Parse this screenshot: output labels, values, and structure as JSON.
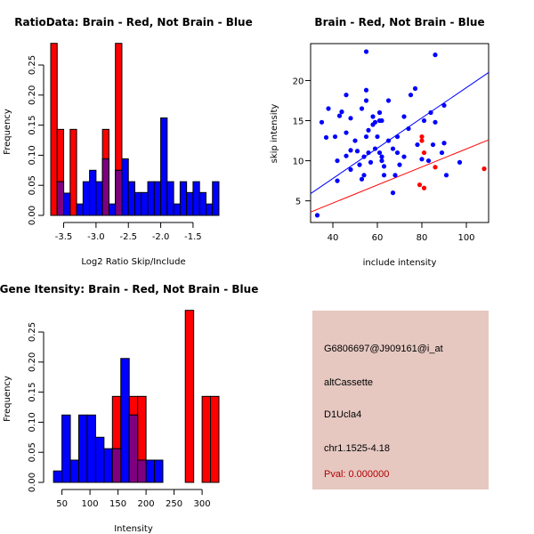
{
  "colors": {
    "red": "#ff0000",
    "blue": "#0000ff",
    "overlap": "#7f007f",
    "info_bg": "#e6c8c1",
    "pval_text": "#b40000",
    "axis": "#000000"
  },
  "chart_data": [
    {
      "id": "ratio",
      "type": "bar",
      "subtype": "overlaid-histogram",
      "title": "RatioData: Brain - Red, Not Brain - Blue",
      "xlabel": "Log2 Ratio Skip/Include",
      "ylabel": "Frequency",
      "xlim": [
        -3.7,
        -1.1
      ],
      "ylim": [
        0,
        0.29
      ],
      "xticks": [
        -3.5,
        -3.0,
        -2.5,
        -2.0,
        -1.5
      ],
      "xtick_labels": [
        "-3.5",
        "-3.0",
        "-2.5",
        "-2.0",
        "-1.5"
      ],
      "yticks": [
        0,
        0.05,
        0.1,
        0.15,
        0.2,
        0.25
      ],
      "ytick_labels": [
        "0.00",
        "0.05",
        "0.10",
        "0.15",
        "0.20",
        "0.25"
      ],
      "series": [
        {
          "name": "Brain",
          "color": "red",
          "bins": [
            [
              -3.7,
              -3.6,
              0.286
            ],
            [
              -3.6,
              -3.5,
              0.143
            ],
            [
              -3.4,
              -3.3,
              0.143
            ],
            [
              -2.9,
              -2.8,
              0.143
            ],
            [
              -2.7,
              -2.6,
              0.286
            ]
          ]
        },
        {
          "name": "Not Brain",
          "color": "blue",
          "bins": [
            [
              -3.6,
              -3.5,
              0.056
            ],
            [
              -3.5,
              -3.4,
              0.037
            ],
            [
              -3.3,
              -3.2,
              0.019
            ],
            [
              -3.2,
              -3.1,
              0.056
            ],
            [
              -3.1,
              -3.0,
              0.075
            ],
            [
              -3.0,
              -2.9,
              0.056
            ],
            [
              -2.9,
              -2.8,
              0.094
            ],
            [
              -2.8,
              -2.7,
              0.019
            ],
            [
              -2.7,
              -2.6,
              0.075
            ],
            [
              -2.6,
              -2.5,
              0.094
            ],
            [
              -2.5,
              -2.4,
              0.056
            ],
            [
              -2.4,
              -2.3,
              0.038
            ],
            [
              -2.3,
              -2.2,
              0.038
            ],
            [
              -2.2,
              -2.1,
              0.056
            ],
            [
              -2.1,
              -2.0,
              0.056
            ],
            [
              -2.0,
              -1.9,
              0.162
            ],
            [
              -1.9,
              -1.8,
              0.056
            ],
            [
              -1.8,
              -1.7,
              0.019
            ],
            [
              -1.7,
              -1.6,
              0.056
            ],
            [
              -1.6,
              -1.5,
              0.038
            ],
            [
              -1.5,
              -1.4,
              0.056
            ],
            [
              -1.4,
              -1.3,
              0.038
            ],
            [
              -1.3,
              -1.2,
              0.019
            ],
            [
              -1.2,
              -1.1,
              0.056
            ]
          ]
        }
      ]
    },
    {
      "id": "scatter",
      "type": "scatter",
      "title": "Brain - Red, Not Brain - Blue",
      "xlabel": "include intensity",
      "ylabel": "skip intensity",
      "xlim": [
        30,
        110
      ],
      "ylim": [
        2.3,
        24.6
      ],
      "xticks": [
        40,
        60,
        80,
        100
      ],
      "xtick_labels": [
        "40",
        "60",
        "80",
        "100"
      ],
      "yticks": [
        5,
        10,
        15,
        20
      ],
      "ytick_labels": [
        "5",
        "10",
        "15",
        "20"
      ],
      "series": [
        {
          "name": "Not Brain",
          "color": "blue",
          "points": [
            [
              33,
              3.2
            ],
            [
              35,
              14.8
            ],
            [
              37,
              12.9
            ],
            [
              38,
              16.5
            ],
            [
              41,
              13
            ],
            [
              42,
              7.5
            ],
            [
              42,
              10
            ],
            [
              43,
              15.6
            ],
            [
              44,
              16.1
            ],
            [
              46,
              10.6
            ],
            [
              46,
              13.5
            ],
            [
              46,
              18.2
            ],
            [
              48,
              11.3
            ],
            [
              48,
              15.3
            ],
            [
              48,
              8.9
            ],
            [
              50,
              12.5
            ],
            [
              51,
              11.2
            ],
            [
              52,
              9.5
            ],
            [
              53,
              16.5
            ],
            [
              53,
              7.7
            ],
            [
              54,
              10.5
            ],
            [
              54,
              8.2
            ],
            [
              55,
              13
            ],
            [
              55,
              17.5
            ],
            [
              55,
              23.6
            ],
            [
              55,
              18.8
            ],
            [
              56,
              11
            ],
            [
              56,
              13.8
            ],
            [
              57,
              9.8
            ],
            [
              58,
              14.5
            ],
            [
              58,
              15.5
            ],
            [
              59,
              11.5
            ],
            [
              59,
              14.8
            ],
            [
              60,
              13
            ],
            [
              61,
              16
            ],
            [
              61,
              15
            ],
            [
              61,
              11
            ],
            [
              62,
              15
            ],
            [
              62,
              10.5
            ],
            [
              62,
              10
            ],
            [
              63,
              8.2
            ],
            [
              63,
              9.3
            ],
            [
              65,
              17.5
            ],
            [
              65,
              12.5
            ],
            [
              67,
              11.5
            ],
            [
              67,
              6
            ],
            [
              68,
              8.2
            ],
            [
              69,
              13
            ],
            [
              69,
              11
            ],
            [
              70,
              9.5
            ],
            [
              72,
              15.5
            ],
            [
              72,
              10.5
            ],
            [
              74,
              14
            ],
            [
              75,
              18.2
            ],
            [
              77,
              19
            ],
            [
              78,
              12
            ],
            [
              80,
              10.2
            ],
            [
              81,
              15
            ],
            [
              83,
              10
            ],
            [
              84,
              16
            ],
            [
              85,
              12
            ],
            [
              86,
              23.2
            ],
            [
              86,
              14.8
            ],
            [
              89,
              11
            ],
            [
              90,
              16.9
            ],
            [
              90,
              12.2
            ],
            [
              91,
              8.2
            ],
            [
              97,
              9.8
            ]
          ]
        },
        {
          "name": "Brain",
          "color": "red",
          "points": [
            [
              79,
              7
            ],
            [
              80,
              12.5
            ],
            [
              80,
              13
            ],
            [
              81,
              6.6
            ],
            [
              81,
              11
            ],
            [
              86,
              9.2
            ],
            [
              108,
              9
            ]
          ]
        }
      ],
      "fit_lines": [
        {
          "series": "Not Brain",
          "color": "blue",
          "from": [
            30,
            5.9
          ],
          "to": [
            110,
            21
          ]
        },
        {
          "series": "Brain",
          "color": "red",
          "from": [
            30,
            3.6
          ],
          "to": [
            110,
            12.6
          ]
        }
      ]
    },
    {
      "id": "gene",
      "type": "bar",
      "subtype": "overlaid-histogram",
      "title": "Gene Itensity: Brain - Red, Not Brain - Blue",
      "xlabel": "Intensity",
      "ylabel": "Frequency",
      "xlim": [
        30,
        330
      ],
      "ylim": [
        0,
        0.29
      ],
      "xticks": [
        50,
        100,
        150,
        200,
        250,
        300
      ],
      "xtick_labels": [
        "50",
        "100",
        "150",
        "200",
        "250",
        "300"
      ],
      "yticks": [
        0,
        0.05,
        0.1,
        0.15,
        0.2,
        0.25
      ],
      "ytick_labels": [
        "0.00",
        "0.05",
        "0.10",
        "0.15",
        "0.20",
        "0.25"
      ],
      "series": [
        {
          "name": "Brain",
          "color": "red",
          "bins": [
            [
              140,
              155,
              0.143
            ],
            [
              170,
              185,
              0.143
            ],
            [
              185,
              200,
              0.143
            ],
            [
              270,
              285,
              0.286
            ],
            [
              300,
              315,
              0.143
            ],
            [
              315,
              330,
              0.143
            ]
          ]
        },
        {
          "name": "Not Brain",
          "color": "blue",
          "bins": [
            [
              35,
              50,
              0.019
            ],
            [
              50,
              65,
              0.112
            ],
            [
              65,
              80,
              0.037
            ],
            [
              80,
              95,
              0.112
            ],
            [
              95,
              110,
              0.112
            ],
            [
              110,
              125,
              0.075
            ],
            [
              125,
              140,
              0.056
            ],
            [
              140,
              155,
              0.056
            ],
            [
              155,
              170,
              0.206
            ],
            [
              170,
              185,
              0.112
            ],
            [
              185,
              200,
              0.037
            ],
            [
              200,
              215,
              0.037
            ],
            [
              215,
              230,
              0.037
            ]
          ]
        }
      ]
    }
  ],
  "info": {
    "probe_id": "G6806697@J909161@i_at",
    "event_type": "altCassette",
    "gene": "D1Ucla4",
    "location": "chr1.1525-4.18",
    "pval": "Pval: 0.000000"
  }
}
